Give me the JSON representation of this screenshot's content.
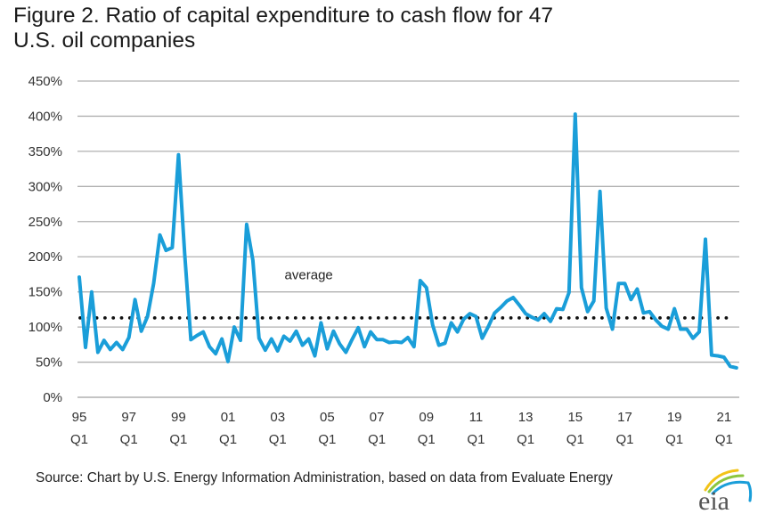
{
  "title": "Figure 2. Ratio of capital expenditure to cash flow for 47 U.S. oil companies",
  "title_lines": [
    "Figure 2. Ratio of capital expenditure to cash flow for 47",
    "U.S. oil companies"
  ],
  "source": "Source: Chart by U.S. Energy Information  Administration, based on data from Evaluate  Energy",
  "logo": {
    "text": "eia",
    "name": "eia-logo",
    "arc_colors": [
      "#f2c318",
      "#8cc63f",
      "#1a9ed9"
    ],
    "text_color": "#555555"
  },
  "chart_data": {
    "type": "line",
    "title": "Figure 2. Ratio of capital expenditure to cash flow for 47 U.S. oil companies",
    "xlabel": "",
    "ylabel": "",
    "ylim": [
      0,
      450
    ],
    "y_unit": "%",
    "y_ticks": [
      0,
      50,
      100,
      150,
      200,
      250,
      300,
      350,
      400,
      450
    ],
    "y_tick_labels": [
      "0%",
      "50%",
      "100%",
      "150%",
      "200%",
      "250%",
      "300%",
      "350%",
      "400%",
      "450%"
    ],
    "grid": true,
    "x_start": "1995 Q1",
    "x_frequency": "quarterly",
    "x_tick_labels": [
      {
        "index": 0,
        "year": "95",
        "q": "Q1"
      },
      {
        "index": 8,
        "year": "97",
        "q": "Q1"
      },
      {
        "index": 16,
        "year": "99",
        "q": "Q1"
      },
      {
        "index": 24,
        "year": "01",
        "q": "Q1"
      },
      {
        "index": 32,
        "year": "03",
        "q": "Q1"
      },
      {
        "index": 40,
        "year": "05",
        "q": "Q1"
      },
      {
        "index": 48,
        "year": "07",
        "q": "Q1"
      },
      {
        "index": 56,
        "year": "09",
        "q": "Q1"
      },
      {
        "index": 64,
        "year": "11",
        "q": "Q1"
      },
      {
        "index": 72,
        "year": "13",
        "q": "Q1"
      },
      {
        "index": 80,
        "year": "15",
        "q": "Q1"
      },
      {
        "index": 88,
        "year": "17",
        "q": "Q1"
      },
      {
        "index": 96,
        "year": "19",
        "q": "Q1"
      },
      {
        "index": 104,
        "year": "21",
        "q": "Q1"
      }
    ],
    "x_count": 107,
    "series": [
      {
        "name": "Capex to cash flow ratio",
        "color": "#1a9ed9",
        "values": [
          171,
          71,
          150,
          64,
          81,
          68,
          78,
          68,
          85,
          139,
          94,
          115,
          162,
          231,
          209,
          213,
          345,
          205,
          82,
          88,
          93,
          72,
          62,
          83,
          51,
          100,
          81,
          246,
          195,
          84,
          67,
          83,
          66,
          87,
          80,
          94,
          74,
          83,
          59,
          106,
          69,
          94,
          76,
          64,
          82,
          99,
          72,
          93,
          82,
          82,
          78,
          79,
          78,
          85,
          72,
          166,
          156,
          103,
          74,
          77,
          106,
          93,
          111,
          119,
          115,
          84,
          101,
          120,
          128,
          137,
          142,
          131,
          119,
          114,
          110,
          119,
          108,
          126,
          125,
          149,
          403,
          156,
          122,
          137,
          293,
          127,
          97,
          162,
          162,
          139,
          154,
          120,
          122,
          110,
          101,
          97,
          126,
          97,
          97,
          84,
          93,
          225,
          60,
          59,
          57,
          44,
          42
        ]
      },
      {
        "name": "average",
        "style": "dotted",
        "color": "#111111",
        "value": 113
      }
    ],
    "annotations": [
      {
        "text": "average",
        "x_index": 36,
        "y": 174
      }
    ],
    "legend": "none"
  }
}
